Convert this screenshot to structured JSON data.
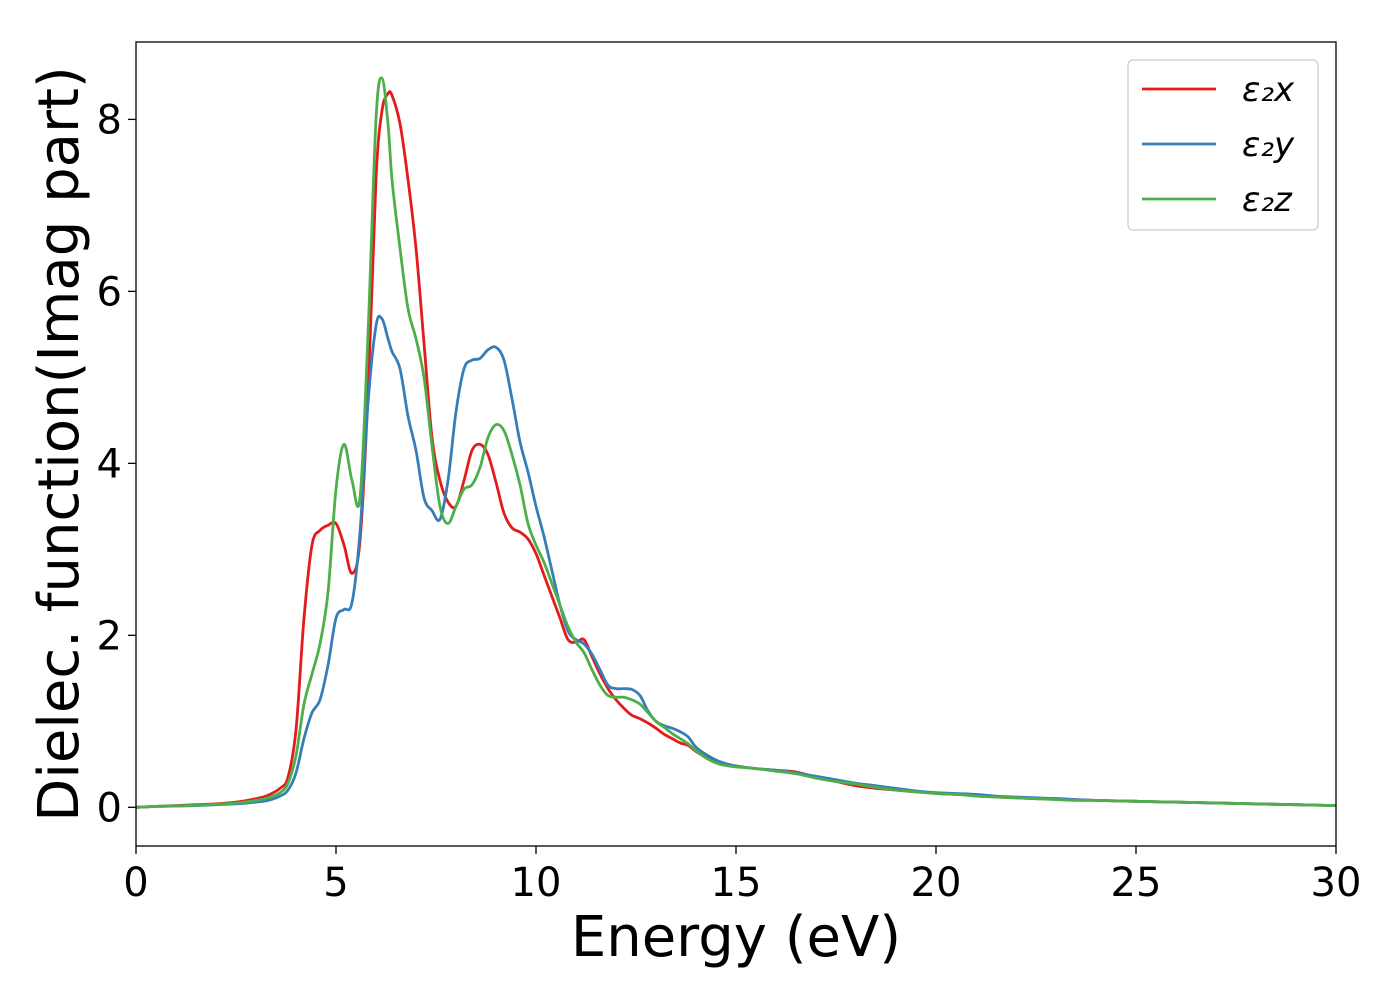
{
  "chart_data": {
    "type": "line",
    "title": "",
    "xlabel": "Energy (eV)",
    "ylabel": "Dielec. function(Imag part)",
    "xlim": [
      0,
      30
    ],
    "ylim": [
      -0.45,
      8.9
    ],
    "xticks": [
      0,
      5,
      10,
      15,
      20,
      25,
      30
    ],
    "yticks": [
      0,
      2,
      4,
      6,
      8
    ],
    "grid": false,
    "legend_position": "top-right",
    "x": [
      0,
      0.5,
      1,
      1.5,
      2,
      2.5,
      3,
      3.3,
      3.6,
      3.8,
      4,
      4.2,
      4.4,
      4.6,
      4.8,
      5,
      5.2,
      5.4,
      5.6,
      5.8,
      6,
      6.15,
      6.3,
      6.4,
      6.6,
      6.8,
      7,
      7.2,
      7.4,
      7.6,
      7.8,
      8,
      8.2,
      8.4,
      8.6,
      8.8,
      9,
      9.2,
      9.4,
      9.6,
      9.8,
      10,
      10.2,
      10.4,
      10.6,
      10.8,
      11,
      11.2,
      11.4,
      11.6,
      11.8,
      12,
      12.2,
      12.4,
      12.6,
      12.8,
      13,
      13.2,
      13.4,
      13.6,
      13.8,
      14,
      14.3,
      14.6,
      15,
      15.5,
      16,
      16.5,
      17,
      17.5,
      18,
      18.5,
      19,
      19.5,
      20,
      20.5,
      21,
      21.5,
      22,
      22.5,
      23,
      23.5,
      24,
      25,
      26,
      27,
      28,
      29,
      30
    ],
    "series": [
      {
        "name": "ε₂x",
        "color": "#e41a1c",
        "values": [
          0,
          0.01,
          0.02,
          0.03,
          0.04,
          0.06,
          0.1,
          0.14,
          0.22,
          0.35,
          0.9,
          2.2,
          3.05,
          3.22,
          3.28,
          3.3,
          3.05,
          2.72,
          3.1,
          4.8,
          7.3,
          8.1,
          8.3,
          8.28,
          7.95,
          7.3,
          6.5,
          5.4,
          4.3,
          3.8,
          3.55,
          3.5,
          3.8,
          4.15,
          4.22,
          4.1,
          3.78,
          3.42,
          3.25,
          3.2,
          3.12,
          2.95,
          2.7,
          2.45,
          2.2,
          1.95,
          1.92,
          1.95,
          1.75,
          1.55,
          1.38,
          1.25,
          1.15,
          1.07,
          1.03,
          0.98,
          0.92,
          0.85,
          0.8,
          0.75,
          0.72,
          0.65,
          0.57,
          0.52,
          0.48,
          0.45,
          0.43,
          0.41,
          0.35,
          0.3,
          0.25,
          0.22,
          0.2,
          0.18,
          0.16,
          0.15,
          0.14,
          0.12,
          0.11,
          0.1,
          0.1,
          0.09,
          0.08,
          0.07,
          0.06,
          0.05,
          0.04,
          0.03,
          0.02
        ]
      },
      {
        "name": "ε₂y",
        "color": "#377eb8",
        "values": [
          0,
          0.01,
          0.015,
          0.02,
          0.03,
          0.04,
          0.06,
          0.08,
          0.13,
          0.2,
          0.4,
          0.8,
          1.1,
          1.25,
          1.65,
          2.2,
          2.3,
          2.38,
          3.2,
          4.7,
          5.6,
          5.68,
          5.45,
          5.3,
          5.1,
          4.55,
          4.15,
          3.6,
          3.45,
          3.35,
          3.8,
          4.6,
          5.1,
          5.2,
          5.22,
          5.32,
          5.35,
          5.2,
          4.75,
          4.25,
          3.9,
          3.5,
          3.15,
          2.75,
          2.35,
          2.05,
          1.95,
          1.9,
          1.78,
          1.6,
          1.42,
          1.38,
          1.38,
          1.37,
          1.3,
          1.12,
          1.0,
          0.95,
          0.92,
          0.88,
          0.82,
          0.7,
          0.6,
          0.53,
          0.48,
          0.45,
          0.43,
          0.4,
          0.36,
          0.32,
          0.28,
          0.25,
          0.22,
          0.19,
          0.17,
          0.16,
          0.15,
          0.13,
          0.12,
          0.11,
          0.1,
          0.09,
          0.08,
          0.07,
          0.06,
          0.05,
          0.04,
          0.03,
          0.02
        ]
      },
      {
        "name": "ε₂z",
        "color": "#4daf4a",
        "values": [
          0,
          0.01,
          0.015,
          0.025,
          0.035,
          0.05,
          0.08,
          0.11,
          0.17,
          0.28,
          0.6,
          1.2,
          1.55,
          1.9,
          2.5,
          3.7,
          4.22,
          3.8,
          3.6,
          5.5,
          8.0,
          8.48,
          7.95,
          7.3,
          6.5,
          5.8,
          5.45,
          5.0,
          4.2,
          3.5,
          3.3,
          3.5,
          3.7,
          3.75,
          3.95,
          4.3,
          4.45,
          4.38,
          4.1,
          3.75,
          3.3,
          3.05,
          2.85,
          2.6,
          2.35,
          2.1,
          1.92,
          1.8,
          1.6,
          1.42,
          1.3,
          1.28,
          1.28,
          1.25,
          1.2,
          1.1,
          1.0,
          0.93,
          0.86,
          0.8,
          0.74,
          0.66,
          0.56,
          0.5,
          0.47,
          0.45,
          0.42,
          0.39,
          0.34,
          0.3,
          0.27,
          0.23,
          0.2,
          0.18,
          0.16,
          0.15,
          0.13,
          0.12,
          0.11,
          0.1,
          0.09,
          0.08,
          0.08,
          0.07,
          0.06,
          0.05,
          0.04,
          0.03,
          0.02
        ]
      }
    ]
  },
  "legend": {
    "items": [
      {
        "label": "ε₂x",
        "color": "#e41a1c"
      },
      {
        "label": "ε₂y",
        "color": "#377eb8"
      },
      {
        "label": "ε₂z",
        "color": "#4daf4a"
      }
    ]
  }
}
